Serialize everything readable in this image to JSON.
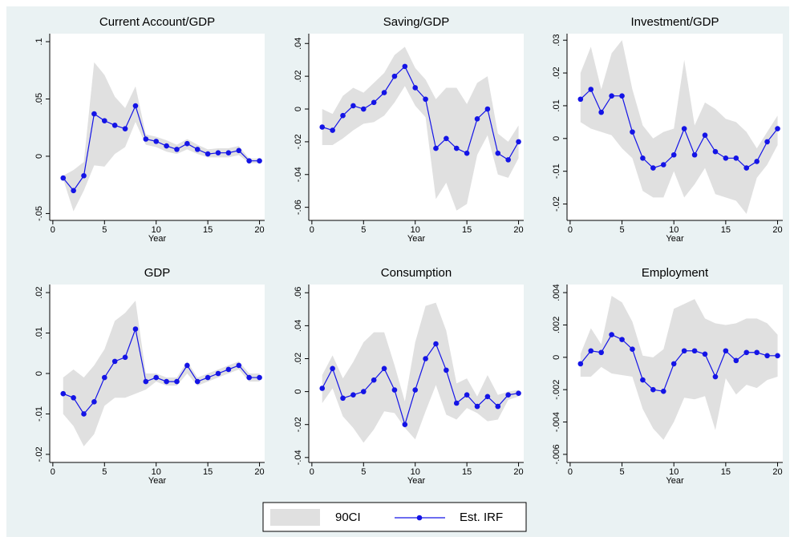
{
  "chart_data": [
    {
      "type": "line",
      "title": "Current Account/GDP",
      "x_label": "Year",
      "x": [
        1,
        2,
        3,
        4,
        5,
        6,
        7,
        8,
        9,
        10,
        11,
        12,
        13,
        14,
        15,
        16,
        17,
        18,
        19,
        20
      ],
      "values": [
        -0.019,
        -0.03,
        -0.017,
        0.037,
        0.031,
        0.027,
        0.024,
        0.044,
        0.015,
        0.013,
        0.009,
        0.006,
        0.011,
        0.006,
        0.002,
        0.003,
        0.003,
        0.005,
        -0.004,
        -0.004
      ],
      "ci_lower": [
        -0.02,
        -0.048,
        -0.03,
        -0.008,
        -0.009,
        0.002,
        0.008,
        0.03,
        0.01,
        0.008,
        0.004,
        0.002,
        0.006,
        0.002,
        -0.001,
        -0.001,
        -0.001,
        0.001,
        -0.006,
        -0.006
      ],
      "ci_upper": [
        -0.017,
        -0.012,
        -0.005,
        0.082,
        0.071,
        0.052,
        0.042,
        0.061,
        0.019,
        0.017,
        0.014,
        0.01,
        0.015,
        0.01,
        0.006,
        0.007,
        0.007,
        0.009,
        -0.002,
        -0.002
      ],
      "xlim": [
        -0.3,
        20.5
      ],
      "xticks": [
        0,
        5,
        10,
        15,
        20
      ],
      "ylim": [
        -0.056,
        0.107
      ],
      "yticks": [
        {
          "value": -0.05,
          "label": "-.05"
        },
        0,
        {
          "value": 0.05,
          "label": ".05"
        },
        {
          "value": 0.1,
          "label": ".1"
        }
      ]
    },
    {
      "type": "line",
      "title": "Saving/GDP",
      "x_label": "Year",
      "x": [
        1,
        2,
        3,
        4,
        5,
        6,
        7,
        8,
        9,
        10,
        11,
        12,
        13,
        14,
        15,
        16,
        17,
        18,
        19,
        20
      ],
      "values": [
        -0.011,
        -0.013,
        -0.004,
        0.002,
        0.0,
        0.004,
        0.01,
        0.02,
        0.026,
        0.013,
        0.006,
        -0.024,
        -0.018,
        -0.024,
        -0.027,
        -0.006,
        0.0,
        -0.027,
        -0.031,
        -0.02
      ],
      "ci_lower": [
        -0.022,
        -0.022,
        -0.018,
        -0.013,
        -0.009,
        -0.008,
        -0.004,
        0.004,
        0.014,
        0.002,
        -0.005,
        -0.055,
        -0.045,
        -0.062,
        -0.058,
        -0.028,
        -0.016,
        -0.04,
        -0.042,
        -0.03
      ],
      "ci_upper": [
        0.0,
        -0.003,
        0.008,
        0.013,
        0.01,
        0.016,
        0.022,
        0.033,
        0.038,
        0.025,
        0.018,
        0.006,
        0.013,
        0.013,
        0.003,
        0.016,
        0.02,
        -0.015,
        -0.02,
        -0.01
      ],
      "xlim": [
        -0.3,
        20.5
      ],
      "xticks": [
        0,
        5,
        10,
        15,
        20
      ],
      "ylim": [
        -0.068,
        0.046
      ],
      "yticks": [
        {
          "value": -0.06,
          "label": "-.06"
        },
        {
          "value": -0.04,
          "label": "-.04"
        },
        {
          "value": -0.02,
          "label": "-.02"
        },
        0,
        {
          "value": 0.02,
          "label": ".02"
        },
        {
          "value": 0.04,
          "label": ".04"
        }
      ]
    },
    {
      "type": "line",
      "title": "Investment/GDP",
      "x_label": "Year",
      "x": [
        1,
        2,
        3,
        4,
        5,
        6,
        7,
        8,
        9,
        10,
        11,
        12,
        13,
        14,
        15,
        16,
        17,
        18,
        19,
        20
      ],
      "values": [
        0.012,
        0.015,
        0.008,
        0.013,
        0.013,
        0.002,
        -0.006,
        -0.009,
        -0.008,
        -0.005,
        0.003,
        -0.005,
        0.001,
        -0.004,
        -0.006,
        -0.006,
        -0.009,
        -0.007,
        -0.001,
        0.003
      ],
      "ci_lower": [
        0.005,
        0.003,
        0.002,
        0.001,
        -0.003,
        -0.006,
        -0.016,
        -0.018,
        -0.018,
        -0.01,
        -0.018,
        -0.014,
        -0.009,
        -0.017,
        -0.018,
        -0.019,
        -0.023,
        -0.012,
        -0.008,
        -0.002
      ],
      "ci_upper": [
        0.02,
        0.028,
        0.015,
        0.026,
        0.03,
        0.015,
        0.004,
        0.0,
        0.002,
        0.003,
        0.024,
        0.004,
        0.011,
        0.009,
        0.006,
        0.005,
        0.002,
        -0.003,
        0.002,
        0.007
      ],
      "xlim": [
        -0.3,
        20.5
      ],
      "xticks": [
        0,
        5,
        10,
        15,
        20
      ],
      "ylim": [
        -0.025,
        0.032
      ],
      "yticks": [
        {
          "value": -0.02,
          "label": "-.02"
        },
        {
          "value": -0.01,
          "label": "-.01"
        },
        0,
        {
          "value": 0.01,
          "label": ".01"
        },
        {
          "value": 0.02,
          "label": ".02"
        },
        {
          "value": 0.03,
          "label": ".03"
        }
      ]
    },
    {
      "type": "line",
      "title": "GDP",
      "x_label": "Year",
      "x": [
        1,
        2,
        3,
        4,
        5,
        6,
        7,
        8,
        9,
        10,
        11,
        12,
        13,
        14,
        15,
        16,
        17,
        18,
        19,
        20
      ],
      "values": [
        -0.005,
        -0.006,
        -0.01,
        -0.007,
        -0.001,
        0.003,
        0.004,
        0.011,
        -0.002,
        -0.001,
        -0.002,
        -0.002,
        0.002,
        -0.002,
        -0.001,
        0.0,
        0.001,
        0.002,
        -0.001,
        -0.001
      ],
      "ci_lower": [
        -0.01,
        -0.013,
        -0.018,
        -0.015,
        -0.008,
        -0.006,
        -0.006,
        -0.005,
        -0.004,
        -0.002,
        -0.003,
        -0.003,
        0.0,
        -0.003,
        -0.002,
        -0.001,
        0.0,
        0.001,
        -0.002,
        -0.002
      ],
      "ci_upper": [
        -0.001,
        0.001,
        -0.001,
        0.002,
        0.006,
        0.013,
        0.015,
        0.018,
        0.0,
        0.0,
        -0.001,
        -0.001,
        0.003,
        -0.001,
        0.0,
        0.001,
        0.002,
        0.003,
        0.0,
        0.0
      ],
      "xlim": [
        -0.3,
        20.5
      ],
      "xticks": [
        0,
        5,
        10,
        15,
        20
      ],
      "ylim": [
        -0.022,
        0.022
      ],
      "yticks": [
        {
          "value": -0.02,
          "label": "-.02"
        },
        {
          "value": -0.01,
          "label": "-.01"
        },
        0,
        {
          "value": 0.01,
          "label": ".01"
        },
        {
          "value": 0.02,
          "label": ".02"
        }
      ]
    },
    {
      "type": "line",
      "title": "Consumption",
      "x_label": "Year",
      "x": [
        1,
        2,
        3,
        4,
        5,
        6,
        7,
        8,
        9,
        10,
        11,
        12,
        13,
        14,
        15,
        16,
        17,
        18,
        19,
        20
      ],
      "values": [
        0.002,
        0.014,
        -0.004,
        -0.002,
        0.0,
        0.007,
        0.014,
        0.001,
        -0.02,
        0.001,
        0.02,
        0.029,
        0.013,
        -0.007,
        -0.002,
        -0.009,
        -0.003,
        -0.009,
        -0.002,
        -0.001
      ],
      "ci_lower": [
        -0.007,
        0.002,
        -0.015,
        -0.022,
        -0.031,
        -0.023,
        -0.012,
        -0.013,
        -0.022,
        -0.029,
        -0.012,
        0.004,
        -0.014,
        -0.017,
        -0.01,
        -0.013,
        -0.018,
        -0.017,
        -0.005,
        -0.003
      ],
      "ci_upper": [
        0.01,
        0.022,
        0.008,
        0.018,
        0.03,
        0.036,
        0.036,
        0.016,
        -0.006,
        0.03,
        0.052,
        0.054,
        0.037,
        0.005,
        0.008,
        -0.003,
        0.01,
        -0.002,
        0.0,
        0.001
      ],
      "xlim": [
        -0.3,
        20.5
      ],
      "xticks": [
        0,
        5,
        10,
        15,
        20
      ],
      "ylim": [
        -0.043,
        0.065
      ],
      "yticks": [
        {
          "value": -0.04,
          "label": "-.04"
        },
        {
          "value": -0.02,
          "label": "-.02"
        },
        0,
        {
          "value": 0.02,
          "label": ".02"
        },
        {
          "value": 0.04,
          "label": ".04"
        },
        {
          "value": 0.06,
          "label": ".06"
        }
      ]
    },
    {
      "type": "line",
      "title": "Employment",
      "x_label": "Year",
      "x": [
        1,
        2,
        3,
        4,
        5,
        6,
        7,
        8,
        9,
        10,
        11,
        12,
        13,
        14,
        15,
        16,
        17,
        18,
        19,
        20
      ],
      "values": [
        -0.0004,
        0.0004,
        0.0003,
        0.0014,
        0.0011,
        0.0005,
        -0.0014,
        -0.002,
        -0.0021,
        -0.0004,
        0.0004,
        0.0004,
        0.0002,
        -0.0012,
        0.0004,
        -0.0002,
        0.0003,
        0.0003,
        0.0001,
        0.0001
      ],
      "ci_lower": [
        -0.0012,
        -0.0012,
        -0.0006,
        -0.001,
        -0.0011,
        -0.0012,
        -0.0032,
        -0.0044,
        -0.0051,
        -0.004,
        -0.0025,
        -0.0026,
        -0.0024,
        -0.0045,
        -0.0013,
        -0.0023,
        -0.0017,
        -0.0019,
        -0.0014,
        -0.0012
      ],
      "ci_upper": [
        0.0002,
        0.0018,
        0.0008,
        0.0038,
        0.0034,
        0.0022,
        0.0001,
        0.0,
        0.0005,
        0.003,
        0.0033,
        0.0036,
        0.0024,
        0.0021,
        0.002,
        0.0021,
        0.0024,
        0.0024,
        0.0021,
        0.0014
      ],
      "xlim": [
        -0.3,
        20.5
      ],
      "xticks": [
        0,
        5,
        10,
        15,
        20
      ],
      "ylim": [
        -0.0065,
        0.0045
      ],
      "yticks": [
        {
          "value": -0.006,
          "label": "-.006"
        },
        {
          "value": -0.004,
          "label": "-.004"
        },
        {
          "value": -0.002,
          "label": "-.002"
        },
        0,
        {
          "value": 0.002,
          "label": ".002"
        },
        {
          "value": 0.004,
          "label": ".004"
        }
      ]
    }
  ],
  "legend": [
    {
      "name": "90CI",
      "color": "#e0e0e0"
    },
    {
      "name": "Est. IRF",
      "color": "#1414e6"
    }
  ]
}
